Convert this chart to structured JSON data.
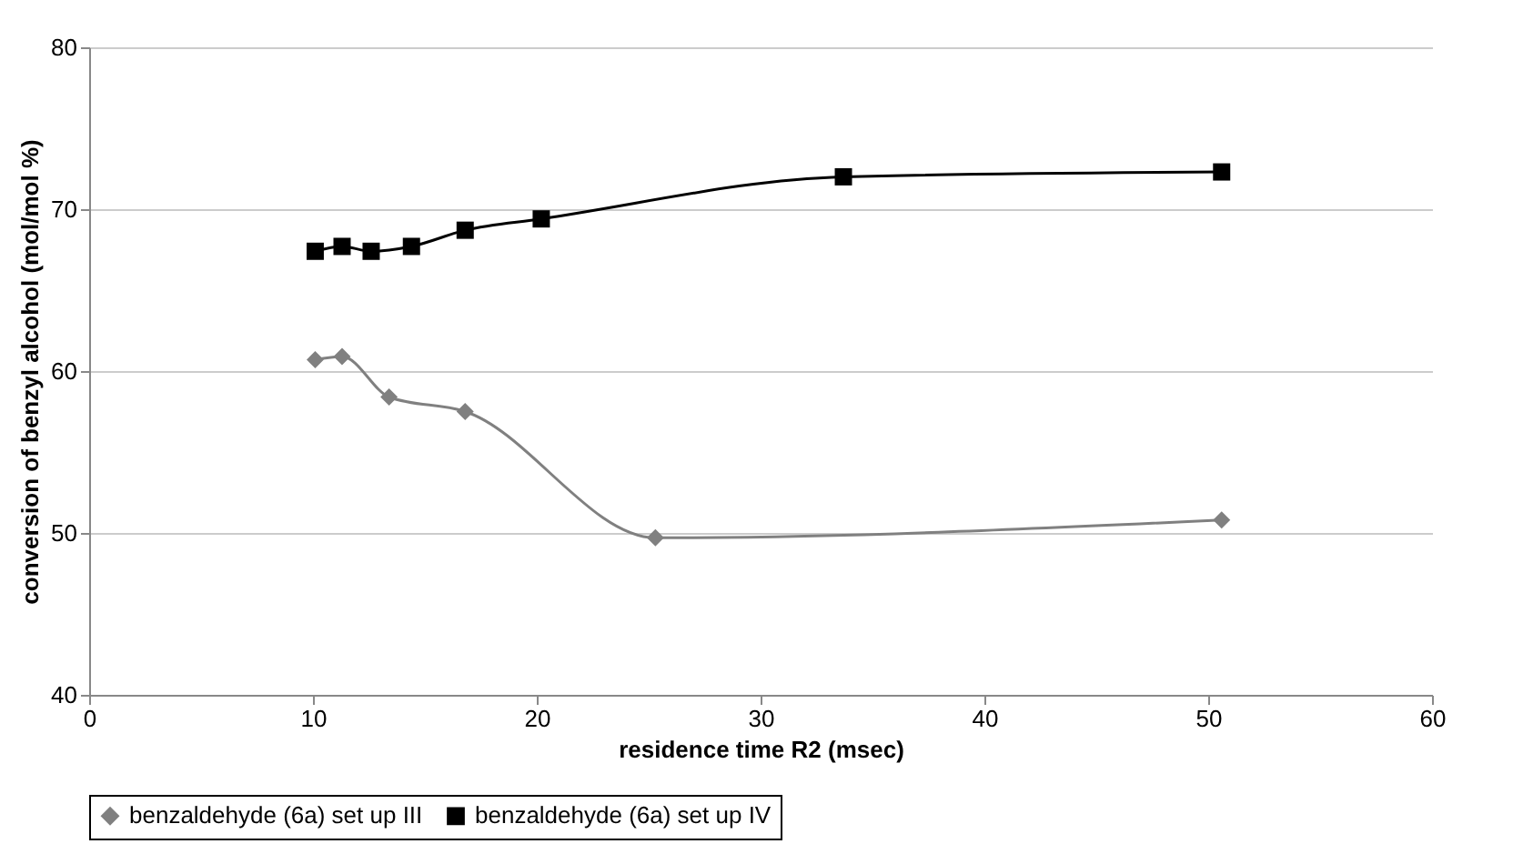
{
  "chart_data": {
    "type": "line",
    "xlabel": "residence time R2 (msec)",
    "ylabel": "conversion of benzyl alcohol (mol/mol %)",
    "xlim": [
      0,
      60
    ],
    "xticks": [
      0,
      10,
      20,
      30,
      40,
      50,
      60
    ],
    "ylim": [
      40,
      80
    ],
    "yticks": [
      40,
      50,
      60,
      70,
      80
    ],
    "grid": "y",
    "legend": "bottom",
    "series": [
      {
        "name": "benzaldehyde (6a) set up III",
        "color": "#808080",
        "marker": "diamond",
        "x": [
          10.1,
          11.3,
          13.4,
          16.8,
          25.3,
          50.6
        ],
        "values": [
          60.7,
          60.9,
          58.4,
          57.5,
          49.7,
          50.8
        ]
      },
      {
        "name": "benzaldehyde (6a) set up IV",
        "color": "#000000",
        "marker": "square",
        "x": [
          10.1,
          11.3,
          12.6,
          14.4,
          16.8,
          20.2,
          33.7,
          50.6
        ],
        "values": [
          67.4,
          67.7,
          67.4,
          67.7,
          68.7,
          69.4,
          72.0,
          72.3
        ]
      }
    ]
  }
}
